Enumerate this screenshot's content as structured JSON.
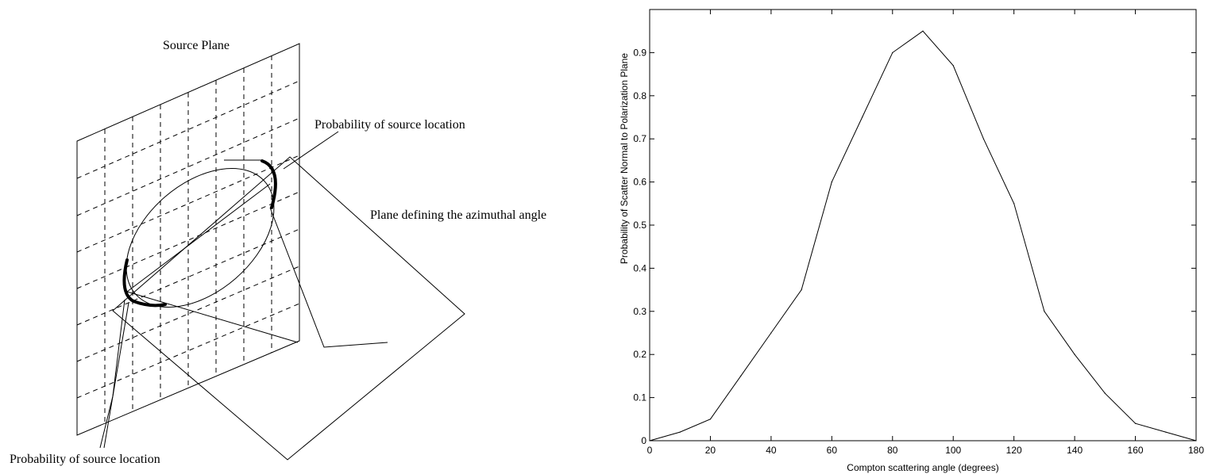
{
  "diagram": {
    "labels": {
      "source_plane": "Source Plane",
      "prob_location_top": "Probability of source location",
      "azimuthal_plane": "Plane defining the azimuthal angle",
      "prob_location_bottom": "Probability of source location"
    }
  },
  "chart_data": {
    "type": "line",
    "title": "",
    "xlabel": "Compton scattering angle (degrees)",
    "ylabel": "Probability of Scatter Normal to Polarization Plane",
    "xlim": [
      0,
      180
    ],
    "ylim": [
      0,
      1.0
    ],
    "xticks": [
      0,
      20,
      40,
      60,
      80,
      100,
      120,
      140,
      160,
      180
    ],
    "xtick_labels": [
      "0",
      "20",
      "40",
      "60",
      "80",
      "100",
      "120",
      "140",
      "160",
      "180"
    ],
    "yticks": [
      0,
      0.1,
      0.2,
      0.3,
      0.4,
      0.5,
      0.6,
      0.7,
      0.8,
      0.9
    ],
    "ytick_labels": [
      "0",
      "0.1",
      "0.2",
      "0.3",
      "0.4",
      "0.5",
      "0.6",
      "0.7",
      "0.8",
      "0.9"
    ],
    "grid": false,
    "series": [
      {
        "x": [
          0,
          10,
          20,
          30,
          40,
          50,
          60,
          70,
          80,
          90,
          100,
          110,
          120,
          130,
          140,
          150,
          160,
          170,
          180
        ],
        "y": [
          0.0,
          0.02,
          0.05,
          0.15,
          0.25,
          0.35,
          0.6,
          0.75,
          0.9,
          0.95,
          0.87,
          0.7,
          0.55,
          0.3,
          0.2,
          0.11,
          0.04,
          0.02,
          0.0
        ]
      }
    ]
  }
}
